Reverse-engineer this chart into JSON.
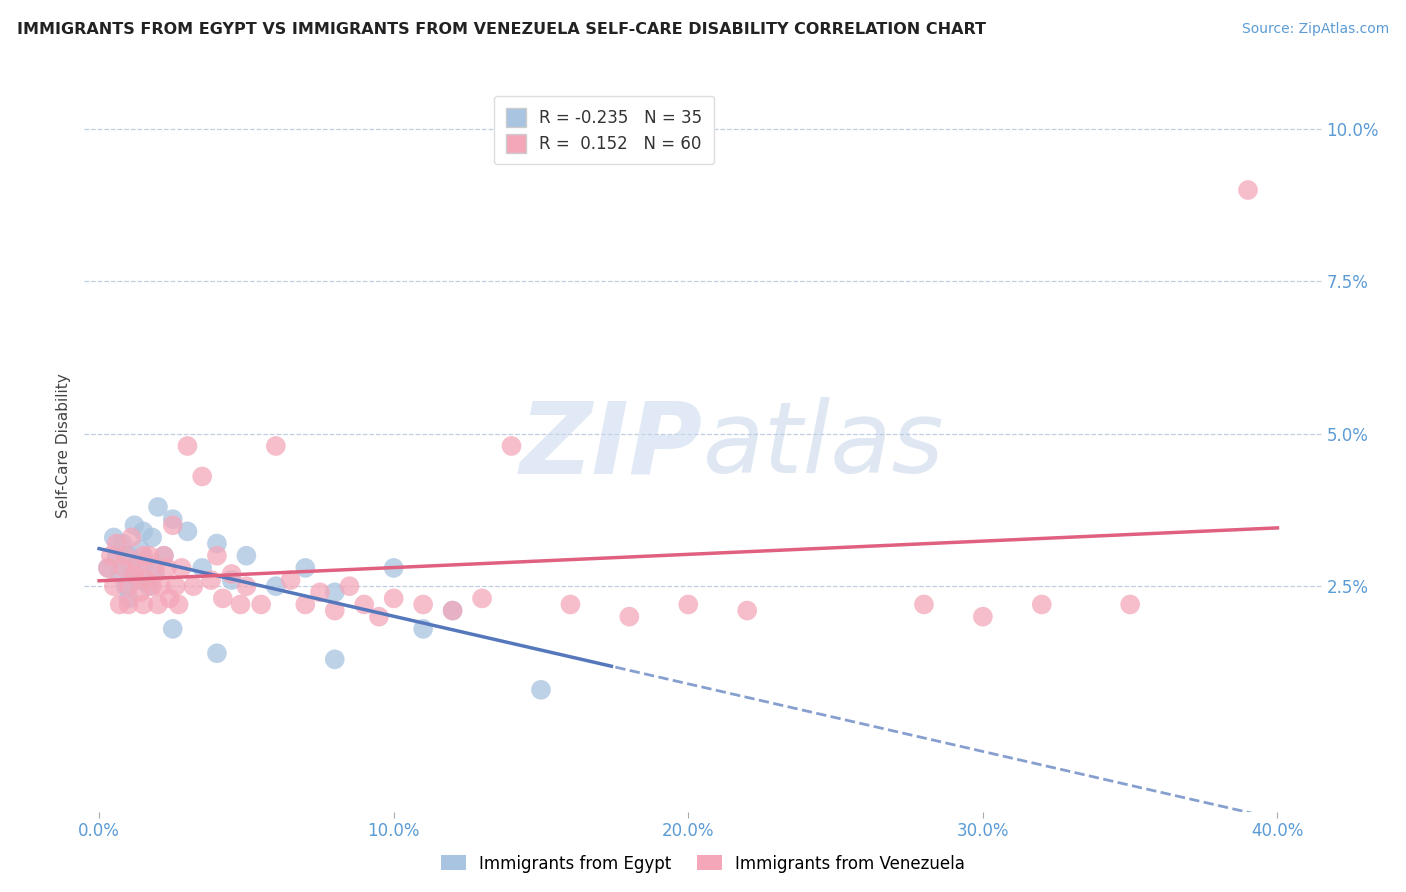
{
  "title": "IMMIGRANTS FROM EGYPT VS IMMIGRANTS FROM VENEZUELA SELF-CARE DISABILITY CORRELATION CHART",
  "source": "Source: ZipAtlas.com",
  "ylabel": "Self-Care Disability",
  "xlabel_ticks": [
    "0.0%",
    "10.0%",
    "20.0%",
    "30.0%",
    "40.0%"
  ],
  "ylabel_ticks_right": [
    "2.5%",
    "5.0%",
    "7.5%",
    "10.0%"
  ],
  "xlim": [
    -0.005,
    0.415
  ],
  "ylim": [
    -0.012,
    0.108
  ],
  "ytick_positions": [
    0.025,
    0.05,
    0.075,
    0.1
  ],
  "xtick_positions": [
    0.0,
    0.1,
    0.2,
    0.3,
    0.4
  ],
  "egypt_color": "#a8c4e0",
  "venezuela_color": "#f4a7b9",
  "egypt_R": -0.235,
  "egypt_N": 35,
  "venezuela_R": 0.152,
  "venezuela_N": 60,
  "egypt_line_color": "#5577bb",
  "venezuela_line_color": "#e06080",
  "legend_egypt_label": "Immigrants from Egypt",
  "legend_venezuela_label": "Immigrants from Venezuela",
  "watermark_zip": "ZIP",
  "watermark_atlas": "atlas",
  "egypt_scatter": [
    [
      0.003,
      0.028
    ],
    [
      0.005,
      0.033
    ],
    [
      0.006,
      0.03
    ],
    [
      0.007,
      0.027
    ],
    [
      0.008,
      0.032
    ],
    [
      0.009,
      0.025
    ],
    [
      0.01,
      0.03
    ],
    [
      0.01,
      0.023
    ],
    [
      0.011,
      0.028
    ],
    [
      0.012,
      0.035
    ],
    [
      0.013,
      0.026
    ],
    [
      0.014,
      0.031
    ],
    [
      0.015,
      0.034
    ],
    [
      0.016,
      0.029
    ],
    [
      0.017,
      0.025
    ],
    [
      0.018,
      0.033
    ],
    [
      0.019,
      0.027
    ],
    [
      0.02,
      0.038
    ],
    [
      0.022,
      0.03
    ],
    [
      0.025,
      0.036
    ],
    [
      0.03,
      0.034
    ],
    [
      0.035,
      0.028
    ],
    [
      0.04,
      0.032
    ],
    [
      0.045,
      0.026
    ],
    [
      0.05,
      0.03
    ],
    [
      0.06,
      0.025
    ],
    [
      0.07,
      0.028
    ],
    [
      0.08,
      0.024
    ],
    [
      0.1,
      0.028
    ],
    [
      0.12,
      0.021
    ],
    [
      0.025,
      0.018
    ],
    [
      0.04,
      0.014
    ],
    [
      0.08,
      0.013
    ],
    [
      0.15,
      0.008
    ],
    [
      0.11,
      0.018
    ]
  ],
  "venezuela_scatter": [
    [
      0.003,
      0.028
    ],
    [
      0.004,
      0.03
    ],
    [
      0.005,
      0.025
    ],
    [
      0.006,
      0.032
    ],
    [
      0.007,
      0.022
    ],
    [
      0.008,
      0.028
    ],
    [
      0.009,
      0.03
    ],
    [
      0.01,
      0.025
    ],
    [
      0.01,
      0.022
    ],
    [
      0.011,
      0.033
    ],
    [
      0.012,
      0.027
    ],
    [
      0.013,
      0.028
    ],
    [
      0.014,
      0.024
    ],
    [
      0.015,
      0.03
    ],
    [
      0.015,
      0.022
    ],
    [
      0.016,
      0.026
    ],
    [
      0.017,
      0.03
    ],
    [
      0.018,
      0.025
    ],
    [
      0.019,
      0.028
    ],
    [
      0.02,
      0.022
    ],
    [
      0.021,
      0.025
    ],
    [
      0.022,
      0.03
    ],
    [
      0.023,
      0.028
    ],
    [
      0.024,
      0.023
    ],
    [
      0.025,
      0.035
    ],
    [
      0.026,
      0.025
    ],
    [
      0.027,
      0.022
    ],
    [
      0.028,
      0.028
    ],
    [
      0.03,
      0.048
    ],
    [
      0.032,
      0.025
    ],
    [
      0.035,
      0.043
    ],
    [
      0.038,
      0.026
    ],
    [
      0.04,
      0.03
    ],
    [
      0.042,
      0.023
    ],
    [
      0.045,
      0.027
    ],
    [
      0.048,
      0.022
    ],
    [
      0.05,
      0.025
    ],
    [
      0.055,
      0.022
    ],
    [
      0.06,
      0.048
    ],
    [
      0.065,
      0.026
    ],
    [
      0.07,
      0.022
    ],
    [
      0.075,
      0.024
    ],
    [
      0.08,
      0.021
    ],
    [
      0.085,
      0.025
    ],
    [
      0.09,
      0.022
    ],
    [
      0.095,
      0.02
    ],
    [
      0.1,
      0.023
    ],
    [
      0.11,
      0.022
    ],
    [
      0.12,
      0.021
    ],
    [
      0.13,
      0.023
    ],
    [
      0.14,
      0.048
    ],
    [
      0.16,
      0.022
    ],
    [
      0.18,
      0.02
    ],
    [
      0.2,
      0.022
    ],
    [
      0.22,
      0.021
    ],
    [
      0.28,
      0.022
    ],
    [
      0.3,
      0.02
    ],
    [
      0.32,
      0.022
    ],
    [
      0.35,
      0.022
    ],
    [
      0.39,
      0.09
    ]
  ]
}
